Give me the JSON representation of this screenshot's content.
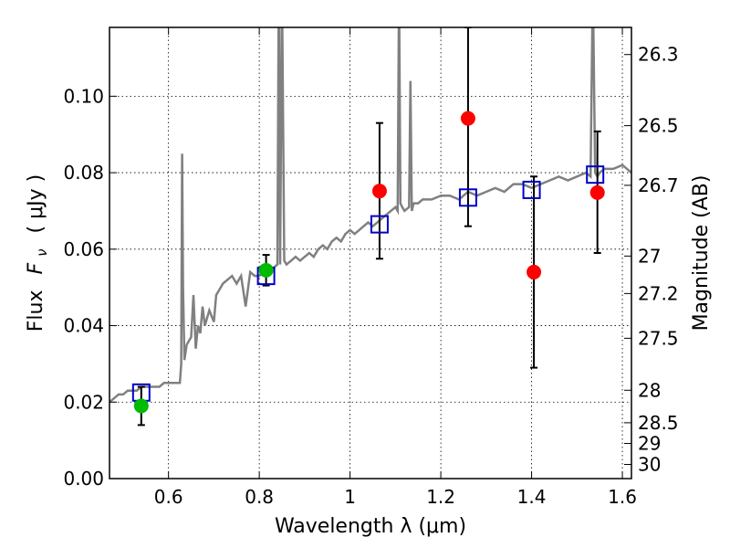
{
  "chart_data": {
    "type": "scatter",
    "xlabel": "Wavelength  λ (μm)",
    "ylabel_main": "Flux",
    "ylabel_symbol": "F",
    "ylabel_sub": "ν",
    "ylabel_unit": "( μJy )",
    "ylabel_right": "Magnitude (AB)",
    "xlim": [
      0.47,
      1.62
    ],
    "ylim": [
      0.0,
      0.118
    ],
    "grid": true,
    "grid_style": "dotted",
    "x_ticks": [
      {
        "value": 0.6,
        "label": "0.6"
      },
      {
        "value": 0.8,
        "label": "0.8"
      },
      {
        "value": 1.0,
        "label": "1"
      },
      {
        "value": 1.2,
        "label": "1.2"
      },
      {
        "value": 1.4,
        "label": "1.4"
      },
      {
        "value": 1.6,
        "label": "1.6"
      }
    ],
    "y_ticks": [
      {
        "value": 0.0,
        "label": "0.00"
      },
      {
        "value": 0.02,
        "label": "0.02"
      },
      {
        "value": 0.04,
        "label": "0.04"
      },
      {
        "value": 0.06,
        "label": "0.06"
      },
      {
        "value": 0.08,
        "label": "0.08"
      },
      {
        "value": 0.1,
        "label": "0.10"
      }
    ],
    "right_ticks": [
      {
        "label": "26.3",
        "flux": 0.1109
      },
      {
        "label": "26.5",
        "flux": 0.0923
      },
      {
        "label": "26.7",
        "flux": 0.0767
      },
      {
        "label": "27",
        "flux": 0.0582
      },
      {
        "label": "27.2",
        "flux": 0.0484
      },
      {
        "label": "27.5",
        "flux": 0.0367
      },
      {
        "label": "28",
        "flux": 0.0231
      },
      {
        "label": "28.5",
        "flux": 0.0146
      },
      {
        "label": "29",
        "flux": 0.0092
      },
      {
        "label": "30",
        "flux": 0.0037
      }
    ],
    "colors": {
      "model": "#808080",
      "model_square": "#0000cc",
      "observed_optical": "#00bb00",
      "observed_nir": "#ff0000",
      "errorbar": "#000000"
    },
    "model_spectrum": {
      "x": [
        0.47,
        0.48,
        0.49,
        0.5,
        0.51,
        0.52,
        0.53,
        0.54,
        0.55,
        0.56,
        0.57,
        0.58,
        0.59,
        0.6,
        0.61,
        0.62,
        0.625,
        0.628,
        0.63,
        0.632,
        0.635,
        0.64,
        0.645,
        0.65,
        0.655,
        0.66,
        0.665,
        0.67,
        0.675,
        0.68,
        0.69,
        0.7,
        0.705,
        0.71,
        0.715,
        0.72,
        0.73,
        0.74,
        0.75,
        0.76,
        0.77,
        0.78,
        0.79,
        0.8,
        0.81,
        0.82,
        0.83,
        0.84,
        0.843,
        0.846,
        0.85,
        0.855,
        0.86,
        0.87,
        0.88,
        0.89,
        0.9,
        0.91,
        0.92,
        0.93,
        0.94,
        0.95,
        0.96,
        0.97,
        0.98,
        0.99,
        1.0,
        1.01,
        1.02,
        1.03,
        1.04,
        1.05,
        1.06,
        1.07,
        1.08,
        1.09,
        1.1,
        1.105,
        1.108,
        1.111,
        1.115,
        1.12,
        1.13,
        1.133,
        1.136,
        1.14,
        1.15,
        1.16,
        1.18,
        1.2,
        1.22,
        1.24,
        1.26,
        1.28,
        1.3,
        1.32,
        1.34,
        1.36,
        1.38,
        1.4,
        1.42,
        1.44,
        1.46,
        1.48,
        1.5,
        1.52,
        1.53,
        1.535,
        1.54,
        1.545,
        1.55,
        1.56,
        1.58,
        1.6,
        1.62
      ],
      "y": [
        0.02,
        0.021,
        0.022,
        0.022,
        0.023,
        0.023,
        0.023,
        0.024,
        0.024,
        0.024,
        0.024,
        0.024,
        0.025,
        0.025,
        0.025,
        0.025,
        0.025,
        0.03,
        0.085,
        0.05,
        0.031,
        0.035,
        0.036,
        0.037,
        0.048,
        0.034,
        0.04,
        0.038,
        0.045,
        0.04,
        0.044,
        0.041,
        0.048,
        0.049,
        0.05,
        0.051,
        0.052,
        0.053,
        0.051,
        0.053,
        0.045,
        0.054,
        0.053,
        0.053,
        0.054,
        0.055,
        0.055,
        0.056,
        0.13,
        0.056,
        0.13,
        0.057,
        0.056,
        0.057,
        0.058,
        0.057,
        0.058,
        0.059,
        0.058,
        0.06,
        0.061,
        0.06,
        0.062,
        0.063,
        0.062,
        0.064,
        0.065,
        0.064,
        0.065,
        0.066,
        0.067,
        0.066,
        0.067,
        0.068,
        0.069,
        0.07,
        0.071,
        0.07,
        0.13,
        0.072,
        0.071,
        0.07,
        0.071,
        0.104,
        0.07,
        0.072,
        0.072,
        0.073,
        0.073,
        0.074,
        0.074,
        0.073,
        0.075,
        0.074,
        0.075,
        0.076,
        0.075,
        0.077,
        0.077,
        0.076,
        0.077,
        0.078,
        0.079,
        0.078,
        0.079,
        0.08,
        0.079,
        0.13,
        0.08,
        0.079,
        0.08,
        0.081,
        0.081,
        0.082,
        0.08
      ]
    },
    "model_photometry": {
      "x": [
        0.54,
        0.815,
        1.065,
        1.26,
        1.4,
        1.54
      ],
      "y": [
        0.0225,
        0.053,
        0.0665,
        0.0735,
        0.0755,
        0.0795
      ]
    },
    "observed": [
      {
        "x": 0.54,
        "y": 0.019,
        "yerr_low": 0.014,
        "yerr_high": 0.024,
        "color": "#00bb00"
      },
      {
        "x": 0.815,
        "y": 0.0545,
        "yerr_low": 0.0505,
        "yerr_high": 0.0585,
        "color": "#00bb00"
      },
      {
        "x": 1.065,
        "y": 0.0752,
        "yerr_low": 0.0575,
        "yerr_high": 0.093,
        "color": "#ff0000"
      },
      {
        "x": 1.26,
        "y": 0.0942,
        "yerr_low": 0.066,
        "yerr_high": 0.118,
        "color": "#ff0000"
      },
      {
        "x": 1.405,
        "y": 0.054,
        "yerr_low": 0.029,
        "yerr_high": 0.079,
        "color": "#ff0000"
      },
      {
        "x": 1.545,
        "y": 0.0748,
        "yerr_low": 0.059,
        "yerr_high": 0.0908,
        "color": "#ff0000"
      }
    ]
  }
}
